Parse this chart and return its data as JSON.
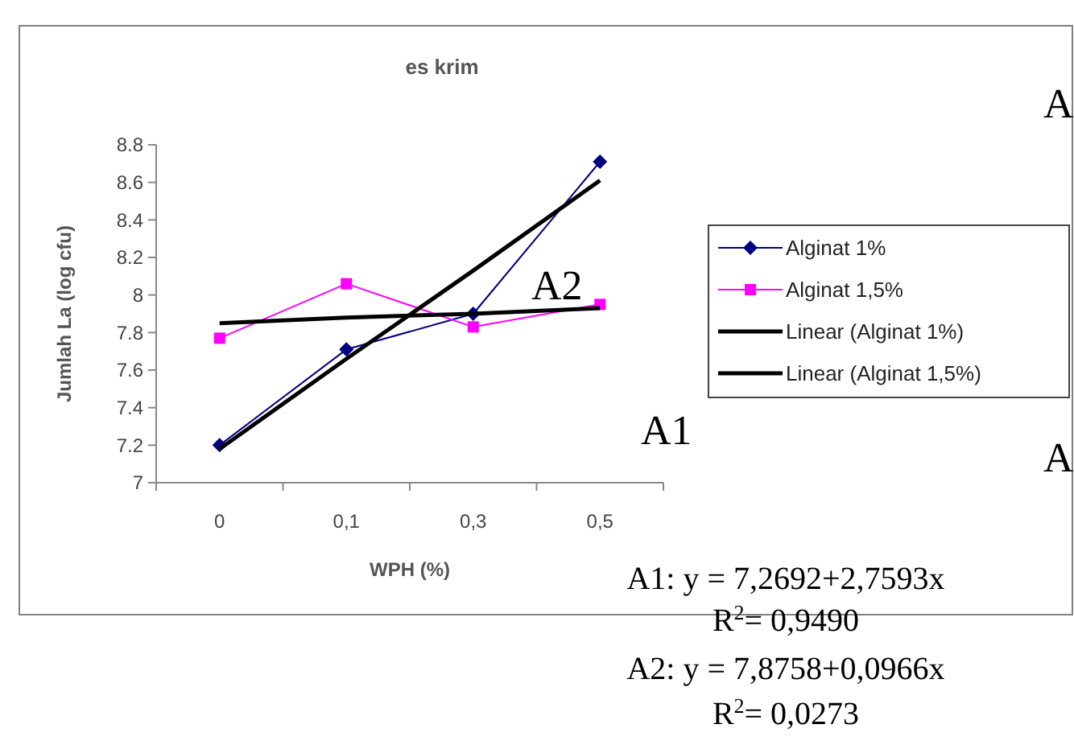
{
  "chart_data": {
    "type": "line",
    "title": "es krim",
    "xlabel": "WPH (%)",
    "ylabel": "Jumlah La (log cfu)",
    "categories": [
      "0",
      "0,1",
      "0,3",
      "0,5"
    ],
    "ylim": [
      7,
      8.8
    ],
    "yticks": [
      {
        "value": 7,
        "label": "7"
      },
      {
        "value": 7.2,
        "label": "7.2"
      },
      {
        "value": 7.4,
        "label": "7.4"
      },
      {
        "value": 7.6,
        "label": "7.6"
      },
      {
        "value": 7.8,
        "label": "7.8"
      },
      {
        "value": 8,
        "label": "8"
      },
      {
        "value": 8.2,
        "label": "8.2"
      },
      {
        "value": 8.4,
        "label": "8.4"
      },
      {
        "value": 8.6,
        "label": "8.6"
      },
      {
        "value": 8.8,
        "label": "8.8"
      }
    ],
    "grid": false,
    "legend": "right",
    "series": [
      {
        "name": "Alginat 1%",
        "color": "#000080",
        "marker": "diamond",
        "values": [
          7.2,
          7.71,
          7.9,
          8.71
        ]
      },
      {
        "name": "Alginat 1,5%",
        "color": "#ff00ff",
        "marker": "square",
        "values": [
          7.77,
          8.06,
          7.83,
          7.95
        ]
      },
      {
        "name": "Linear (Alginat 1%)",
        "color": "#000000",
        "marker": "none",
        "values": [
          7.18,
          7.66,
          8.13,
          8.61
        ]
      },
      {
        "name": "Linear (Alginat 1,5%)",
        "color": "#000000",
        "marker": "none",
        "values": [
          7.85,
          7.88,
          7.9,
          7.93
        ]
      }
    ],
    "annotations": [
      "A2",
      "A1",
      "A",
      "A",
      "A1: y = 7,2692+2,7593x",
      "R$^{2}$=  0,9490",
      "A2: y = 7,8758+0,0966x",
      "R$^{2}$=  0,0273"
    ]
  }
}
